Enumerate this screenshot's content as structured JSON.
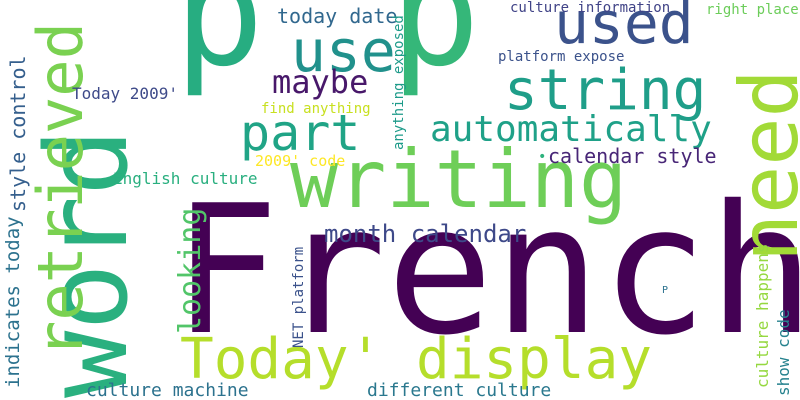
{
  "word_cloud": {
    "words": {
      "french": "French",
      "word": "word",
      "p1": "p",
      "p2": "p",
      "writing": "writing",
      "need": "need",
      "retrieved": "retrieved",
      "today_display": "Today' display",
      "string": "string",
      "used": "used",
      "use": "use",
      "part": "part",
      "automatically": "automatically",
      "maybe": "maybe",
      "looking": "looking",
      "month_calendar": "month calendar",
      "calendar_style": "calendar style",
      "today_date": "today date",
      "style_control": "style control",
      "indicates_today": "indicates today",
      "show_code": "show code",
      "culture_happens": "culture happens",
      "culture_machine": "culture machine",
      "different_culture": "different culture",
      "english_culture": "English culture",
      "today_2009": "Today 2009'",
      "code_2009": "2009' code",
      "culture_information": "culture information",
      "right_place": "right place",
      "platform_expose": "platform expose",
      "find_anything": "find anything",
      "anything_exposed": "anything exposed",
      "net_platform": "NET platform",
      "p_small": "P",
      "dot": "•"
    }
  }
}
